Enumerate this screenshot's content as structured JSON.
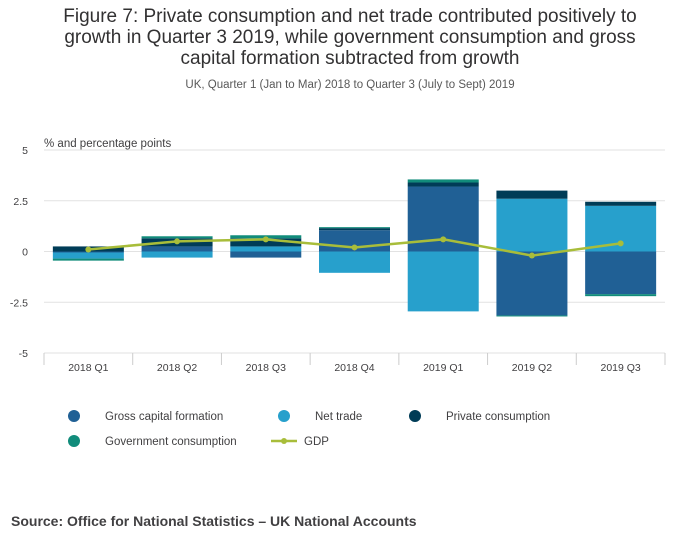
{
  "title_lines": [
    "Figure 7: Private consumption and net trade contributed positively to",
    "growth in Quarter 3 2019, while government consumption and gross",
    "capital formation subtracted from growth"
  ],
  "subtitle": "UK, Quarter 1 (Jan to Mar) 2018 to Quarter 3 (July to Sept) 2019",
  "source": "Source:  Office for National Statistics – UK National Accounts",
  "colors": {
    "gross_capital_formation": "#206095",
    "net_trade": "#27a0cc",
    "private_consumption": "#003c57",
    "government_consumption": "#118c7b",
    "gdp": "#a8bd3a"
  },
  "chart_data": {
    "type": "bar",
    "stacked": true,
    "ylabel": "% and percentage points",
    "ylim": [
      -5,
      5
    ],
    "yticks": [
      5,
      2.5,
      0,
      -2.5,
      -5
    ],
    "ytick_labels": [
      "5",
      "2.5",
      "0",
      "-2.5",
      "-5"
    ],
    "categories": [
      "2018 Q1",
      "2018 Q2",
      "2018 Q3",
      "2018 Q4",
      "2019 Q1",
      "2019 Q2",
      "2019 Q3"
    ],
    "series": [
      {
        "name": "Gross capital formation",
        "kind": "bar",
        "values": [
          -0.05,
          0.25,
          -0.3,
          1.05,
          3.2,
          -3.15,
          -2.1
        ]
      },
      {
        "name": "Net trade",
        "kind": "bar",
        "values": [
          -0.3,
          -0.3,
          0.25,
          -1.05,
          -2.95,
          2.6,
          2.25
        ]
      },
      {
        "name": "Private consumption",
        "kind": "bar",
        "values": [
          0.25,
          0.4,
          0.4,
          0.1,
          0.2,
          0.4,
          0.2
        ]
      },
      {
        "name": "Government consumption",
        "kind": "bar",
        "values": [
          -0.1,
          0.1,
          0.15,
          0.05,
          0.15,
          -0.05,
          -0.1
        ]
      },
      {
        "name": "GDP",
        "kind": "line",
        "values": [
          0.1,
          0.5,
          0.6,
          0.2,
          0.6,
          -0.2,
          0.4
        ]
      }
    ],
    "legend": [
      {
        "name": "Gross capital formation",
        "marker": "circle"
      },
      {
        "name": "Net trade",
        "marker": "circle"
      },
      {
        "name": "Private consumption",
        "marker": "circle"
      },
      {
        "name": "Government consumption",
        "marker": "circle"
      },
      {
        "name": "GDP",
        "marker": "line"
      }
    ],
    "legend_position": "bottom",
    "grid": true
  }
}
